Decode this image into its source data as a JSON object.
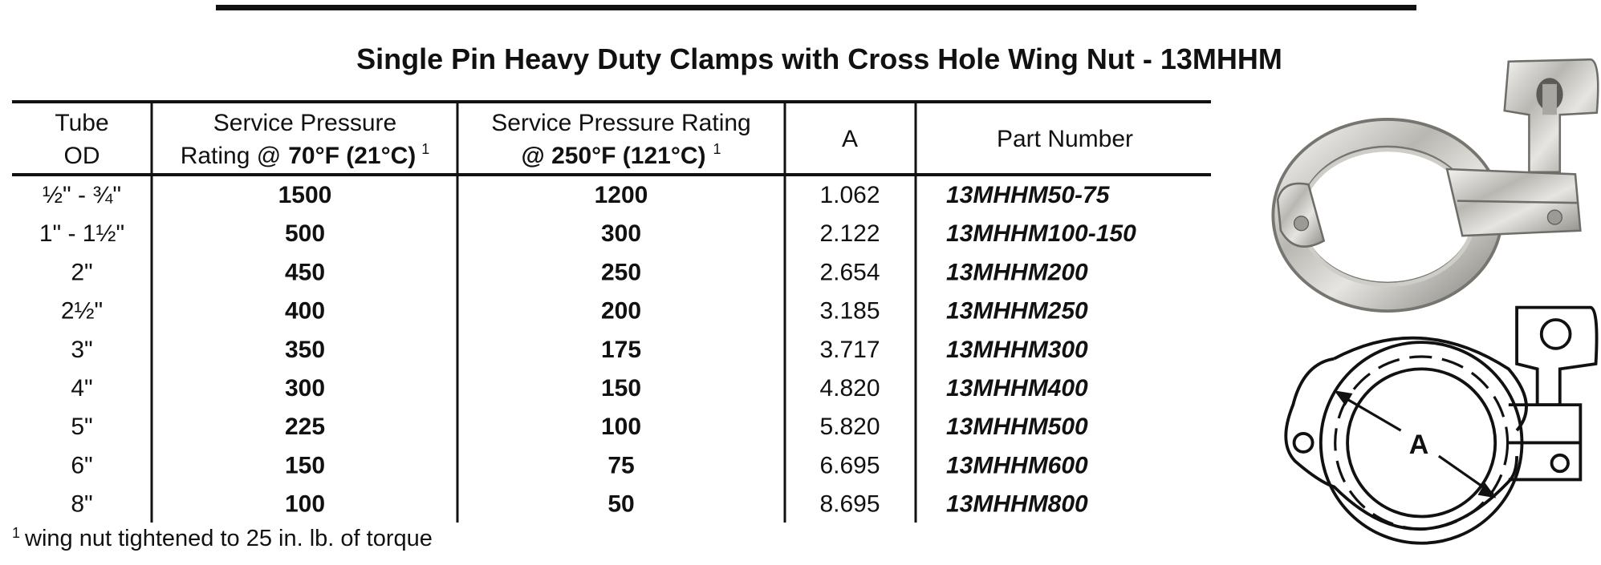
{
  "title": "Single Pin Heavy Duty Clamps with Cross Hole Wing Nut - 13MHHM",
  "table": {
    "headers": [
      [
        "Tube",
        "OD"
      ],
      [
        "Service Pressure",
        "Rating @",
        "70°F (21°C)",
        "1"
      ],
      [
        "Service Pressure Rating",
        "@ 250°F (121°C)",
        "1"
      ],
      [
        "A"
      ],
      [
        "Part Number"
      ]
    ],
    "rows": [
      [
        "½\" - ¾\"",
        "1500",
        "1200",
        "1.062",
        "13MHHM50-75"
      ],
      [
        "1\" - 1½\"",
        "500",
        "300",
        "2.122",
        "13MHHM100-150"
      ],
      [
        "2\"",
        "450",
        "250",
        "2.654",
        "13MHHM200"
      ],
      [
        "2½\"",
        "400",
        "200",
        "3.185",
        "13MHHM250"
      ],
      [
        "3\"",
        "350",
        "175",
        "3.717",
        "13MHHM300"
      ],
      [
        "4\"",
        "300",
        "150",
        "4.820",
        "13MHHM400"
      ],
      [
        "5\"",
        "225",
        "100",
        "5.820",
        "13MHHM500"
      ],
      [
        "6\"",
        "150",
        "75",
        "6.695",
        "13MHHM600"
      ],
      [
        "8\"",
        "100",
        "50",
        "8.695",
        "13MHHM800"
      ]
    ]
  },
  "footnote": {
    "marker": "1",
    "text": "wing nut tightened to 25 in. lb. of torque"
  },
  "diagram": {
    "label": "A"
  }
}
